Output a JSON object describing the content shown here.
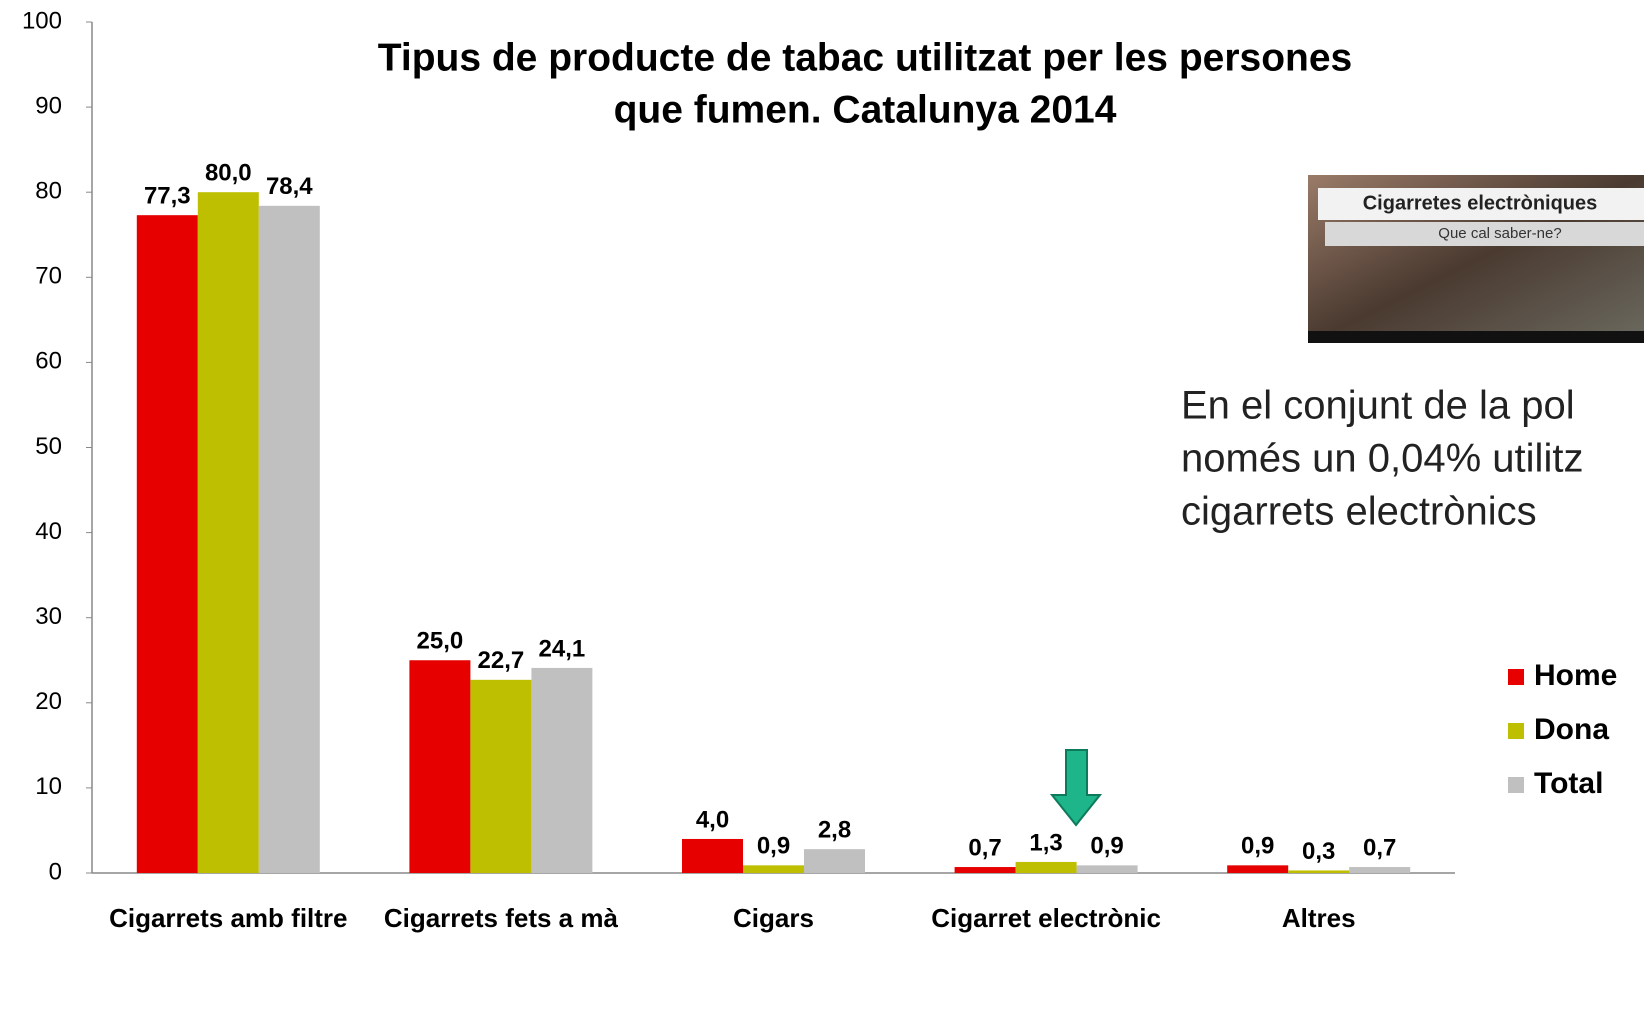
{
  "chart_data": {
    "type": "bar",
    "title": [
      "Tipus de producte de tabac utilitzat per les persones",
      "que fumen. Catalunya 2014"
    ],
    "categories": [
      "Cigarrets amb filtre",
      "Cigarrets fets a mà",
      "Cigars",
      "Cigarret electrònic",
      "Altres"
    ],
    "series": [
      {
        "name": "Home",
        "color": "#e60000",
        "values": [
          77.3,
          25.0,
          4.0,
          0.7,
          0.9
        ],
        "value_labels": [
          "77,3",
          "25,0",
          "4,0",
          "0,7",
          "0,9"
        ]
      },
      {
        "name": "Dona",
        "color": "#bdbf00",
        "values": [
          80.0,
          22.7,
          0.9,
          1.3,
          0.3
        ],
        "value_labels": [
          "80,0",
          "22,7",
          "0,9",
          "1,3",
          "0,3"
        ]
      },
      {
        "name": "Total",
        "color": "#c0c0c0",
        "values": [
          78.4,
          24.1,
          2.8,
          0.9,
          0.7
        ],
        "value_labels": [
          "78,4",
          "24,1",
          "2,8",
          "0,9",
          "0,7"
        ]
      }
    ],
    "ylim": [
      0,
      100
    ],
    "yticks": [
      0,
      10,
      20,
      30,
      40,
      50,
      60,
      70,
      80,
      90,
      100
    ],
    "grid": false,
    "legend": "right",
    "annotation": [
      "En el conjunt de la pol",
      "només un 0,04% utilitz",
      "cigarrets electrònics"
    ]
  },
  "thumbnail": {
    "title": "Cigarretes electròniques",
    "subtitle": "Que cal saber-ne?"
  }
}
